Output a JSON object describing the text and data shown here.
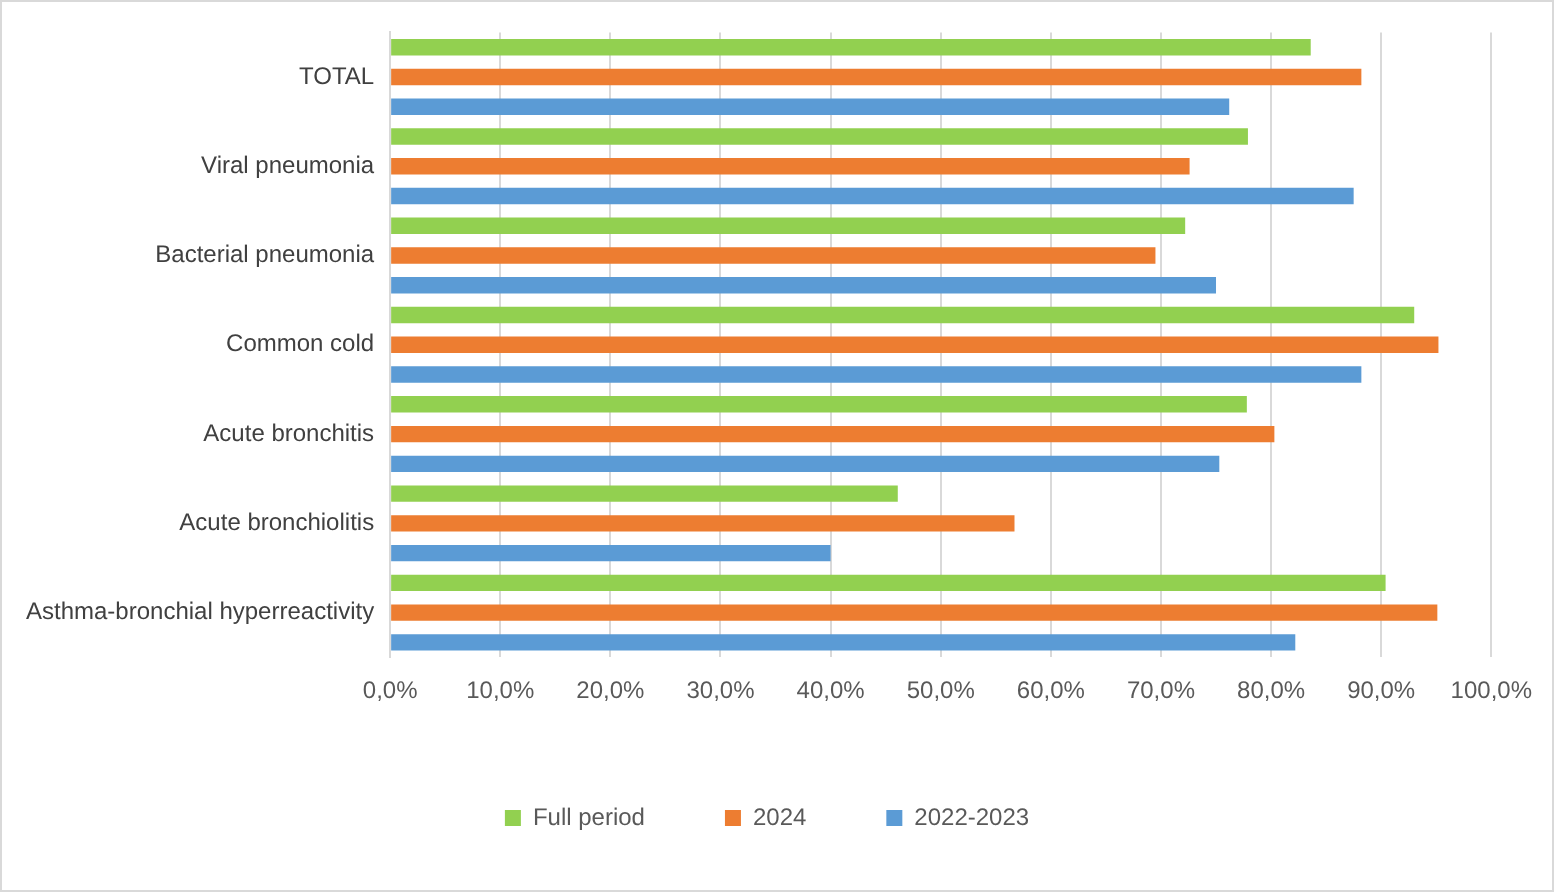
{
  "chart_data": {
    "type": "bar",
    "orientation": "horizontal",
    "categories": [
      "TOTAL",
      "Viral pneumonia",
      "Bacterial pneumonia",
      "Common cold",
      "Acute bronchitis",
      "Acute bronchiolitis",
      "Asthma-bronchial hyperreactivity"
    ],
    "series": [
      {
        "name": "Full period",
        "color": "#92d050",
        "values": [
          83.6,
          77.9,
          72.2,
          93.0,
          77.8,
          46.1,
          90.4
        ]
      },
      {
        "name": "2024",
        "color": "#ed7d31",
        "values": [
          88.2,
          72.6,
          69.5,
          95.2,
          80.3,
          56.7,
          95.1
        ]
      },
      {
        "name": "2022-2023",
        "color": "#5b9bd5",
        "values": [
          76.2,
          87.5,
          75.0,
          88.2,
          75.3,
          40.0,
          82.2
        ]
      }
    ],
    "xlim": [
      0,
      100
    ],
    "xticks": [
      {
        "value": 0,
        "label": "0,0%"
      },
      {
        "value": 10,
        "label": "10,0%"
      },
      {
        "value": 20,
        "label": "20,0%"
      },
      {
        "value": 30,
        "label": "30,0%"
      },
      {
        "value": 40,
        "label": "40,0%"
      },
      {
        "value": 50,
        "label": "50,0%"
      },
      {
        "value": 60,
        "label": "60,0%"
      },
      {
        "value": 70,
        "label": "70,0%"
      },
      {
        "value": 80,
        "label": "80,0%"
      },
      {
        "value": 90,
        "label": "90,0%"
      },
      {
        "value": 100,
        "label": "100,0%"
      }
    ],
    "grid": "x",
    "legend": "bottom"
  }
}
